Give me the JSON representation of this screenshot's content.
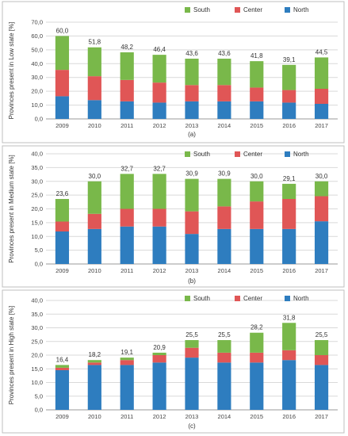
{
  "chart_data": [
    {
      "type": "bar",
      "stacked": true,
      "caption": "(a)",
      "ylabel": "Provinces present in Low state [%]",
      "ylim": [
        0,
        70
      ],
      "yticks": [
        "0,0",
        "10,0",
        "20,0",
        "30,0",
        "40,0",
        "50,0",
        "60,0",
        "70,0"
      ],
      "categories": [
        "2009",
        "2010",
        "2011",
        "2012",
        "2013",
        "2014",
        "2015",
        "2016",
        "2017"
      ],
      "totals": [
        "60,0",
        "51,8",
        "48,2",
        "46,4",
        "43,6",
        "43,6",
        "41,8",
        "39,1",
        "44,5"
      ],
      "series": [
        {
          "name": "North",
          "color": "#2e7dbf",
          "values": [
            16.4,
            13.6,
            12.7,
            11.8,
            12.7,
            12.7,
            12.7,
            11.8,
            10.9
          ]
        },
        {
          "name": "Center",
          "color": "#e05656",
          "values": [
            19.1,
            17.3,
            15.5,
            14.5,
            11.8,
            11.8,
            10.0,
            9.1,
            10.9
          ]
        },
        {
          "name": "South",
          "color": "#79b84a",
          "values": [
            24.5,
            20.9,
            20.0,
            20.1,
            19.1,
            19.1,
            19.1,
            18.2,
            22.7
          ]
        }
      ],
      "legend": "top-right",
      "grid": true
    },
    {
      "type": "bar",
      "stacked": true,
      "caption": "(b)",
      "ylabel": "Provinces present in Medium state [%]",
      "ylim": [
        0,
        40
      ],
      "yticks": [
        "0,0",
        "5,0",
        "10,0",
        "15,0",
        "20,0",
        "25,0",
        "30,0",
        "35,0",
        "40,0"
      ],
      "categories": [
        "2009",
        "2010",
        "2011",
        "2012",
        "2013",
        "2014",
        "2015",
        "2016",
        "2017"
      ],
      "totals": [
        "23,6",
        "30,0",
        "32,7",
        "32,7",
        "30,9",
        "30,9",
        "30,0",
        "29,1",
        "30,0"
      ],
      "series": [
        {
          "name": "North",
          "color": "#2e7dbf",
          "values": [
            11.8,
            12.7,
            13.6,
            13.6,
            10.9,
            12.7,
            12.7,
            12.7,
            15.5
          ]
        },
        {
          "name": "Center",
          "color": "#e05656",
          "values": [
            3.6,
            5.5,
            6.4,
            6.4,
            8.2,
            8.2,
            10.0,
            10.9,
            9.1
          ]
        },
        {
          "name": "South",
          "color": "#79b84a",
          "values": [
            8.2,
            11.8,
            12.7,
            12.7,
            11.8,
            10.0,
            7.3,
            5.5,
            5.4
          ]
        }
      ],
      "legend": "top-right",
      "grid": true
    },
    {
      "type": "bar",
      "stacked": true,
      "caption": "(c)",
      "ylabel": "Provinces present in High state [%]",
      "ylim": [
        0,
        40
      ],
      "yticks": [
        "0,0",
        "5,0",
        "10,0",
        "15,0",
        "20,0",
        "25,0",
        "30,0",
        "35,0",
        "40,0"
      ],
      "categories": [
        "2009",
        "2010",
        "2011",
        "2012",
        "2013",
        "2014",
        "2015",
        "2016",
        "2017"
      ],
      "totals": [
        "16,4",
        "18,2",
        "19,1",
        "20,9",
        "25,5",
        "25,5",
        "28,2",
        "31,8",
        "25,5"
      ],
      "series": [
        {
          "name": "North",
          "color": "#2e7dbf",
          "values": [
            14.5,
            16.4,
            16.4,
            17.3,
            19.1,
            17.3,
            17.3,
            18.2,
            16.4
          ]
        },
        {
          "name": "Center",
          "color": "#e05656",
          "values": [
            0.9,
            0.9,
            1.8,
            2.7,
            3.6,
            3.6,
            3.6,
            3.6,
            3.6
          ]
        },
        {
          "name": "South",
          "color": "#79b84a",
          "values": [
            1.0,
            0.9,
            0.9,
            0.9,
            2.8,
            4.6,
            7.3,
            10.0,
            5.5
          ]
        }
      ],
      "legend": "top-right",
      "grid": true
    }
  ]
}
